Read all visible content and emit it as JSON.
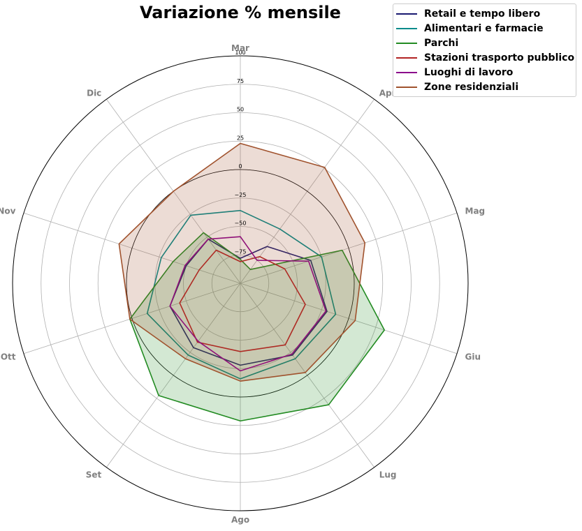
{
  "chart_data": {
    "type": "radar",
    "title": "Variazione % mensile",
    "categories": [
      "Mar",
      "Apr",
      "Mag",
      "Giu",
      "Lug",
      "Ago",
      "Set",
      "Ott",
      "Nov",
      "Dic"
    ],
    "r_range": [
      -100,
      100
    ],
    "r_ticks": [
      -75,
      -50,
      -25,
      0,
      25,
      50,
      75,
      100
    ],
    "r_tick_labels": [
      "−75",
      "−50",
      "−25",
      "0",
      "25",
      "50",
      "75",
      "100"
    ],
    "reference_circle": 0,
    "grid": true,
    "legend_position": "top-right",
    "series": [
      {
        "name": "Retail e tempo libero",
        "color": "#191970",
        "fill": false,
        "values": [
          -78,
          -60,
          -35,
          -20,
          -22,
          -28,
          -30,
          -35,
          -50,
          -52
        ]
      },
      {
        "name": "Alimentari e farmacie",
        "color": "#008b8b",
        "fill": false,
        "values": [
          -36,
          -41,
          -25,
          -12,
          -18,
          -16,
          -22,
          -14,
          -27,
          -26
        ]
      },
      {
        "name": "Parchi",
        "color": "#228b22",
        "fill": true,
        "fill_color": "#228b22",
        "fill_opacity": 0.2,
        "values": [
          -79,
          -85,
          -6,
          33,
          32,
          21,
          22,
          2,
          -38,
          -45
        ]
      },
      {
        "name": "Stazioni trasporto pubblico",
        "color": "#b22222",
        "fill": false,
        "values": [
          -81,
          -71,
          -59,
          -40,
          -33,
          -40,
          -36,
          -44,
          -62,
          -64
        ]
      },
      {
        "name": "Luoghi di lavoro",
        "color": "#8b008b",
        "fill": false,
        "values": [
          -59,
          -75,
          -37,
          -21,
          -23,
          -23,
          -37,
          -35,
          -49,
          -52
        ]
      },
      {
        "name": "Zone residenziali",
        "color": "#a0522d",
        "fill": true,
        "fill_color": "#a0522d",
        "fill_opacity": 0.2,
        "values": [
          23,
          26,
          15,
          6,
          -3,
          -14,
          -18,
          2,
          12,
          0
        ]
      }
    ]
  }
}
